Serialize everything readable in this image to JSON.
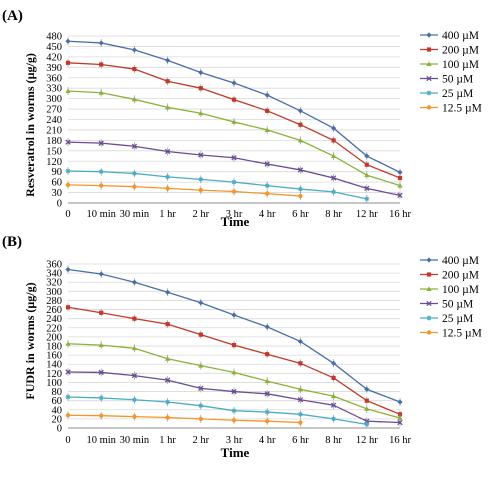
{
  "chart_data": [
    {
      "panel_label": "(A)",
      "type": "line",
      "xlabel": "Time",
      "ylabel": "Resveratrol in worms (µg/g)",
      "categories": [
        "0",
        "10 min",
        "30 min",
        "1 hr",
        "2 hr",
        "3 hr",
        "4 hr",
        "6 hr",
        "8 hr",
        "12 hr",
        "16 hr"
      ],
      "ylim": [
        0,
        480
      ],
      "yticks": [
        0,
        30,
        60,
        90,
        120,
        150,
        180,
        210,
        240,
        270,
        300,
        330,
        360,
        390,
        420,
        450,
        480
      ],
      "grid": "horizontal",
      "legend": "right",
      "series": [
        {
          "name": "400 µM",
          "color": "#4a6fa5",
          "marker": "diamond",
          "values": [
            465,
            460,
            440,
            410,
            375,
            345,
            310,
            265,
            215,
            135,
            88
          ]
        },
        {
          "name": "200 µM",
          "color": "#c0392b",
          "marker": "square",
          "values": [
            403,
            398,
            385,
            350,
            330,
            297,
            265,
            225,
            180,
            110,
            72
          ]
        },
        {
          "name": "100 µM",
          "color": "#8db03c",
          "marker": "triangle",
          "values": [
            322,
            317,
            298,
            275,
            258,
            233,
            210,
            180,
            135,
            80,
            50
          ]
        },
        {
          "name": "50 µM",
          "color": "#6a4c93",
          "marker": "x",
          "values": [
            175,
            172,
            163,
            148,
            138,
            130,
            112,
            95,
            72,
            42,
            22
          ]
        },
        {
          "name": "25 µM",
          "color": "#4bacc6",
          "marker": "star",
          "values": [
            92,
            90,
            85,
            75,
            68,
            60,
            50,
            40,
            32,
            12,
            null
          ]
        },
        {
          "name": "12.5 µM",
          "color": "#f5962a",
          "marker": "circle",
          "values": [
            52,
            50,
            47,
            42,
            37,
            33,
            27,
            20,
            null,
            null,
            null
          ]
        }
      ]
    },
    {
      "panel_label": "(B)",
      "type": "line",
      "xlabel": "Time",
      "ylabel": "FUDR in worms (µg/g)",
      "categories": [
        "0",
        "10 min",
        "30 min",
        "1 hr",
        "2 hr",
        "3 hr",
        "4 hr",
        "6 hr",
        "8 hr",
        "12 hr",
        "16 hr"
      ],
      "ylim": [
        0,
        360
      ],
      "yticks": [
        0,
        20,
        40,
        60,
        80,
        100,
        120,
        140,
        160,
        180,
        200,
        220,
        240,
        260,
        280,
        300,
        320,
        340,
        360
      ],
      "grid": "horizontal",
      "legend": "right",
      "series": [
        {
          "name": "400 µM",
          "color": "#4a6fa5",
          "marker": "diamond",
          "values": [
            348,
            338,
            320,
            298,
            275,
            248,
            222,
            190,
            142,
            85,
            57
          ]
        },
        {
          "name": "200 µM",
          "color": "#c0392b",
          "marker": "square",
          "values": [
            265,
            253,
            240,
            228,
            205,
            182,
            162,
            142,
            110,
            60,
            30
          ]
        },
        {
          "name": "100 µM",
          "color": "#8db03c",
          "marker": "triangle",
          "values": [
            185,
            182,
            175,
            152,
            137,
            122,
            103,
            85,
            70,
            42,
            22
          ]
        },
        {
          "name": "50 µM",
          "color": "#6a4c93",
          "marker": "x",
          "values": [
            123,
            122,
            115,
            105,
            87,
            80,
            75,
            62,
            50,
            15,
            12
          ]
        },
        {
          "name": "25 µM",
          "color": "#4bacc6",
          "marker": "star",
          "values": [
            68,
            66,
            62,
            57,
            49,
            38,
            35,
            30,
            20,
            8,
            null
          ]
        },
        {
          "name": "12.5 µM",
          "color": "#f5962a",
          "marker": "circle",
          "values": [
            28,
            27,
            25,
            23,
            20,
            17,
            15,
            12,
            null,
            null,
            null
          ]
        }
      ]
    }
  ]
}
